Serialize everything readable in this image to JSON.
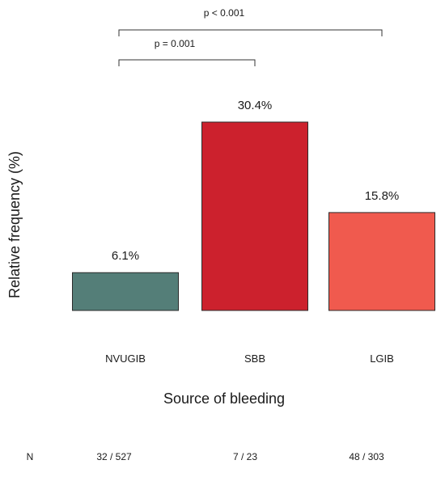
{
  "chart_data": {
    "type": "bar",
    "categories": [
      "NVUGIB",
      "SBB",
      "LGIB"
    ],
    "values": [
      6.1,
      30.4,
      15.8
    ],
    "data_labels": [
      "6.1%",
      "30.4%",
      "15.8%"
    ],
    "bar_colors": [
      "#547e78",
      "#cc212d",
      "#f05a4e"
    ],
    "ylim": [
      0,
      36
    ],
    "xlabel": "Source of bleeding",
    "ylabel": "Relative frequency  (%)",
    "grid": false,
    "legend": "none",
    "comparisons": [
      {
        "from": "NVUGIB",
        "to": "SBB",
        "label": "p = 0.001"
      },
      {
        "from": "NVUGIB",
        "to": "LGIB",
        "label": "p < 0.001"
      }
    ],
    "n_row": {
      "label": "N",
      "values": [
        "32 / 527",
        "7 / 23",
        "48 / 303"
      ]
    }
  }
}
